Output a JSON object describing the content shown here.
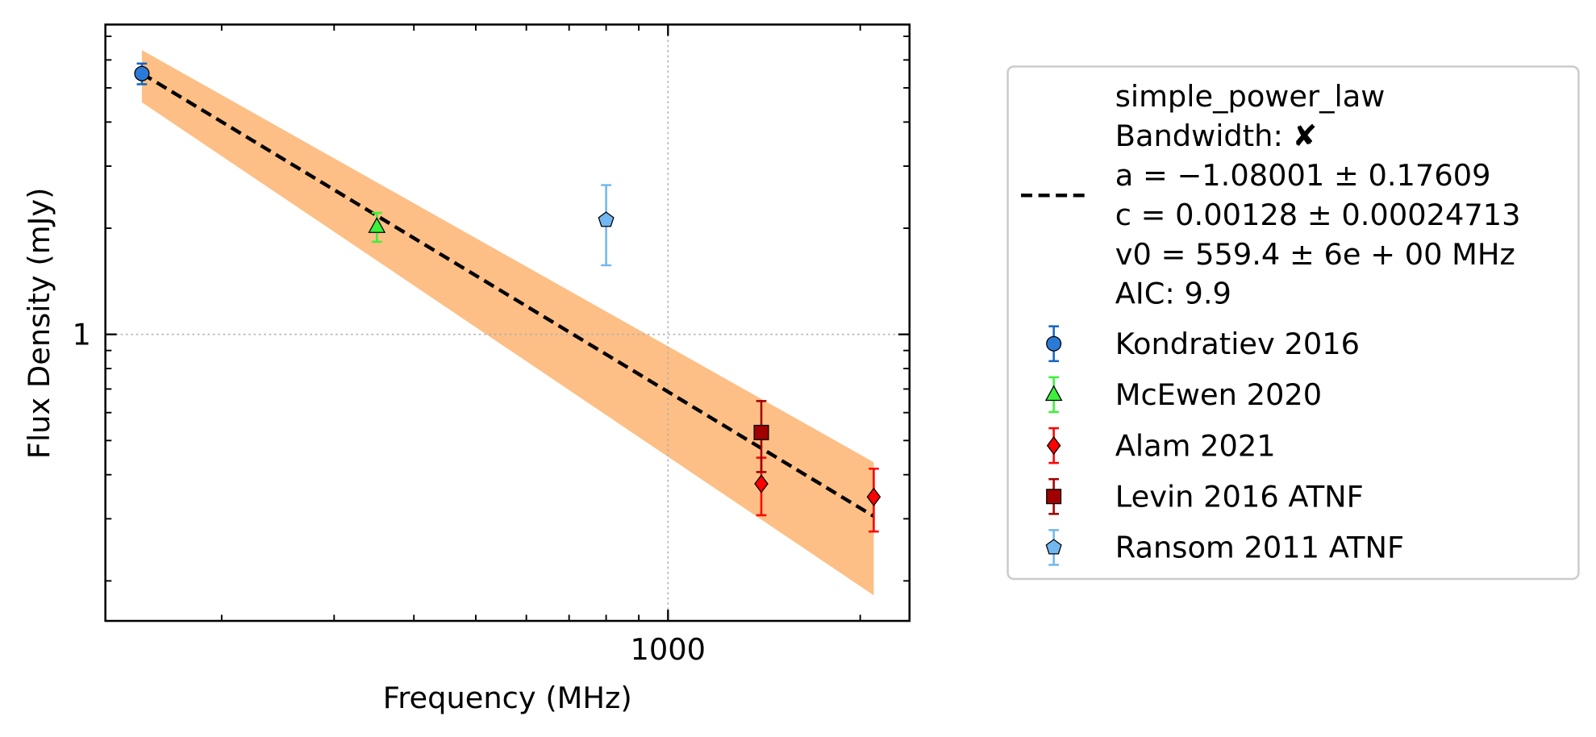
{
  "chart_data": {
    "type": "scatter",
    "xlabel": "Frequency (MHz)",
    "ylabel": "Flux Density (mJy)",
    "xscale": "log",
    "yscale": "log",
    "xlim": [
      131.5,
      2389
    ],
    "ylim": [
      0.154,
      7.56
    ],
    "xticks": [
      1000
    ],
    "yticks": [
      1
    ],
    "grid": true,
    "series": [
      {
        "name": "simple_power_law",
        "type": "line",
        "color": "#000000",
        "band_color": "#fdbf85",
        "legend_lines": [
          "Bandwidth: ✘",
          "a = −1.08001 ± 0.17609",
          "c = 0.00128 ± 0.00024713",
          "v0 = 559.4 ± 6e + 00 MHz",
          "AIC: 9.9"
        ],
        "x": [
          150,
          2100
        ],
        "values": [
          5.49,
          0.305
        ],
        "lower": [
          4.55,
          0.182
        ],
        "upper": [
          6.4,
          0.434
        ]
      },
      {
        "name": "Kondratiev 2016",
        "marker": "circle",
        "color": "#2a7bd8",
        "errcolor": "#1565c0",
        "x": [
          150
        ],
        "values": [
          5.49
        ],
        "errors": [
          0.37
        ]
      },
      {
        "name": "McEwen 2020",
        "marker": "triangle",
        "color": "#3cf03c",
        "errcolor": "#3cf03c",
        "x": [
          350
        ],
        "values": [
          2.02
        ],
        "errors": [
          0.19
        ]
      },
      {
        "name": "Alam 2021",
        "marker": "diamond",
        "color": "#ff0000",
        "errcolor": "#ff0000",
        "x": [
          1400,
          2100
        ],
        "values": [
          0.377,
          0.346
        ],
        "errors": [
          0.07,
          0.07
        ]
      },
      {
        "name": "Levin 2016 ATNF",
        "marker": "square",
        "color": "#a00000",
        "errcolor": "#a00000",
        "x": [
          1400
        ],
        "values": [
          0.527
        ],
        "errors": [
          0.12
        ]
      },
      {
        "name": "Ransom 2011 ATNF",
        "marker": "pentagon",
        "color": "#72b7f0",
        "errcolor": "#72b7f0",
        "x": [
          800
        ],
        "values": [
          2.11
        ],
        "errors": [
          0.54
        ]
      }
    ]
  }
}
